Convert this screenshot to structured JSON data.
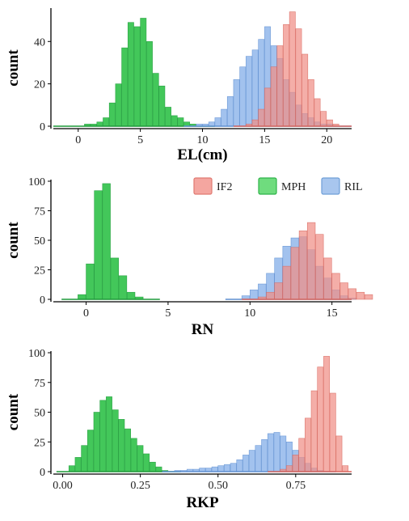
{
  "legend": [
    {
      "label": "IF2",
      "fill": "#f4a6a0",
      "stroke": "#e07a72"
    },
    {
      "label": "MPH",
      "fill": "#6fdc7e",
      "stroke": "#2fb34a"
    },
    {
      "label": "RIL",
      "fill": "#a8c6ee",
      "stroke": "#6f9fd8"
    }
  ],
  "colors": {
    "IF2": "#f08f86",
    "MPH": "#39c451",
    "RIL": "#8db4ea",
    "MPH_line": "#1f9a3a",
    "RIL_line": "#5f8fd1",
    "IF2_line": "#d8675e",
    "axis": "#000000"
  },
  "chart_data": [
    {
      "type": "histogram",
      "xlabel": "EL(cm)",
      "ylabel": "count",
      "xlim": [
        -2,
        22
      ],
      "ylim": [
        0,
        55
      ],
      "xticks": [
        0,
        5,
        10,
        15,
        20
      ],
      "yticks": [
        0,
        20,
        40
      ],
      "bin_width": 0.5,
      "series": [
        {
          "name": "MPH",
          "x0": -2,
          "values": [
            0,
            0,
            0,
            0,
            0,
            1,
            1,
            2,
            4,
            11,
            20,
            37,
            49,
            47,
            51,
            40,
            25,
            19,
            9,
            5,
            4,
            2,
            1,
            0
          ]
        },
        {
          "name": "RIL",
          "x0": 9.5,
          "values": [
            1,
            1,
            2,
            4,
            8,
            14,
            22,
            28,
            33,
            36,
            41,
            47,
            38,
            32,
            22,
            16,
            10,
            6,
            4,
            2,
            1,
            1,
            0
          ]
        },
        {
          "name": "IF2",
          "x0": 13.5,
          "values": [
            1,
            3,
            8,
            18,
            28,
            38,
            48,
            54,
            46,
            34,
            22,
            13,
            7,
            3,
            1
          ]
        }
      ]
    },
    {
      "type": "histogram",
      "xlabel": "RN",
      "ylabel": "count",
      "xlim": [
        -2,
        16.2
      ],
      "ylim": [
        0,
        100
      ],
      "xticks": [
        0,
        5,
        10,
        15
      ],
      "yticks": [
        0,
        25,
        50,
        75,
        100
      ],
      "bin_width": 0.5,
      "series": [
        {
          "name": "MPH",
          "x0": -0.5,
          "values": [
            4,
            30,
            92,
            98,
            35,
            20,
            6,
            2
          ]
        },
        {
          "name": "RIL",
          "x0": 9.5,
          "values": [
            3,
            8,
            13,
            22,
            35,
            45,
            52,
            53,
            42,
            28,
            18,
            8,
            3,
            1
          ]
        },
        {
          "name": "IF2",
          "x0": 10.5,
          "values": [
            2,
            6,
            14,
            28,
            44,
            58,
            65,
            55,
            35,
            22,
            14,
            9,
            6,
            4
          ]
        }
      ]
    },
    {
      "type": "histogram",
      "xlabel": "RKP",
      "ylabel": "count",
      "xlim": [
        -0.03,
        0.93
      ],
      "ylim": [
        0,
        100
      ],
      "xticks": [
        0.0,
        0.25,
        0.5,
        0.75
      ],
      "xtick_labels": [
        "0.00",
        "0.25",
        "0.50",
        "0.75"
      ],
      "yticks": [
        0,
        25,
        50,
        75,
        100
      ],
      "bin_width": 0.02,
      "series": [
        {
          "name": "MPH",
          "x0": 0.02,
          "values": [
            5,
            12,
            22,
            35,
            50,
            60,
            63,
            52,
            44,
            36,
            28,
            22,
            15,
            8,
            4,
            1
          ]
        },
        {
          "name": "RIL",
          "x0": 0.36,
          "values": [
            1,
            1,
            2,
            2,
            3,
            3,
            4,
            5,
            6,
            7,
            10,
            14,
            18,
            22,
            27,
            32,
            33,
            30,
            25,
            18,
            12,
            7,
            3,
            1
          ]
        },
        {
          "name": "IF2",
          "x0": 0.7,
          "values": [
            2,
            5,
            14,
            28,
            45,
            68,
            88,
            97,
            66,
            30,
            5
          ]
        }
      ]
    }
  ]
}
